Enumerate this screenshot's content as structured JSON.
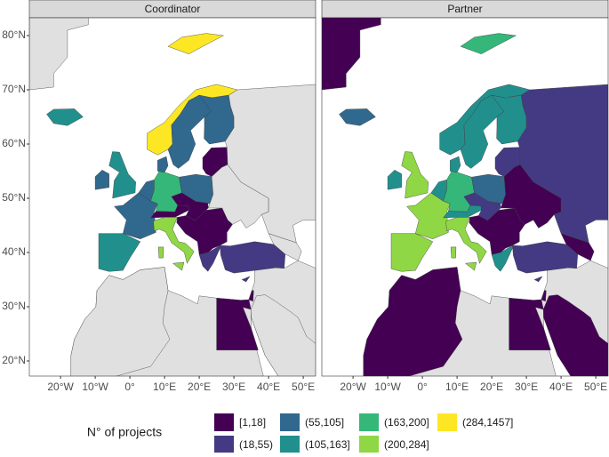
{
  "panels": [
    {
      "title": "Coordinator"
    },
    {
      "title": "Partner"
    }
  ],
  "yticks": [
    {
      "value": 80,
      "label": "80°N"
    },
    {
      "value": 70,
      "label": "70°N"
    },
    {
      "value": 60,
      "label": "60°N"
    },
    {
      "value": 50,
      "label": "50°N"
    },
    {
      "value": 40,
      "label": "40°N"
    },
    {
      "value": 30,
      "label": "30°N"
    },
    {
      "value": 20,
      "label": "20°N"
    }
  ],
  "xticks": [
    {
      "value": -20,
      "label": "20°W"
    },
    {
      "value": -10,
      "label": "10°W"
    },
    {
      "value": 0,
      "label": "0°"
    },
    {
      "value": 10,
      "label": "10°E"
    },
    {
      "value": 20,
      "label": "20°E"
    },
    {
      "value": 30,
      "label": "30°E"
    },
    {
      "value": 40,
      "label": "40°E"
    },
    {
      "value": 50,
      "label": "50°E"
    }
  ],
  "legend": {
    "title": "N° of projects",
    "items": [
      {
        "label": "[1,18]",
        "color": "#440154"
      },
      {
        "label": "(18,55)",
        "color": "#443a83"
      },
      {
        "label": "(55,105]",
        "color": "#31688e"
      },
      {
        "label": "(105,163]",
        "color": "#21908d"
      },
      {
        "label": "(163,200]",
        "color": "#35b779"
      },
      {
        "label": "(200,284]",
        "color": "#8fd744"
      },
      {
        "label": "(284,1457]",
        "color": "#fde725"
      }
    ]
  }
}
